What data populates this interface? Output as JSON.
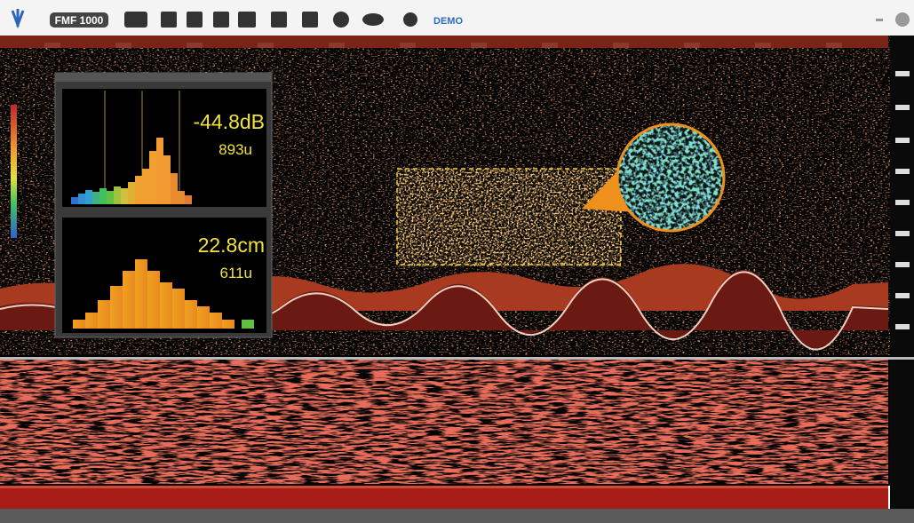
{
  "toolbar": {
    "logo": "FMF 1000",
    "mode": "DEMO"
  },
  "panel": {
    "histogram_top": {
      "value": "-44.8dB",
      "count": "893u"
    },
    "histogram_bottom": {
      "value": "22.8cm",
      "count": "611u"
    }
  }
}
